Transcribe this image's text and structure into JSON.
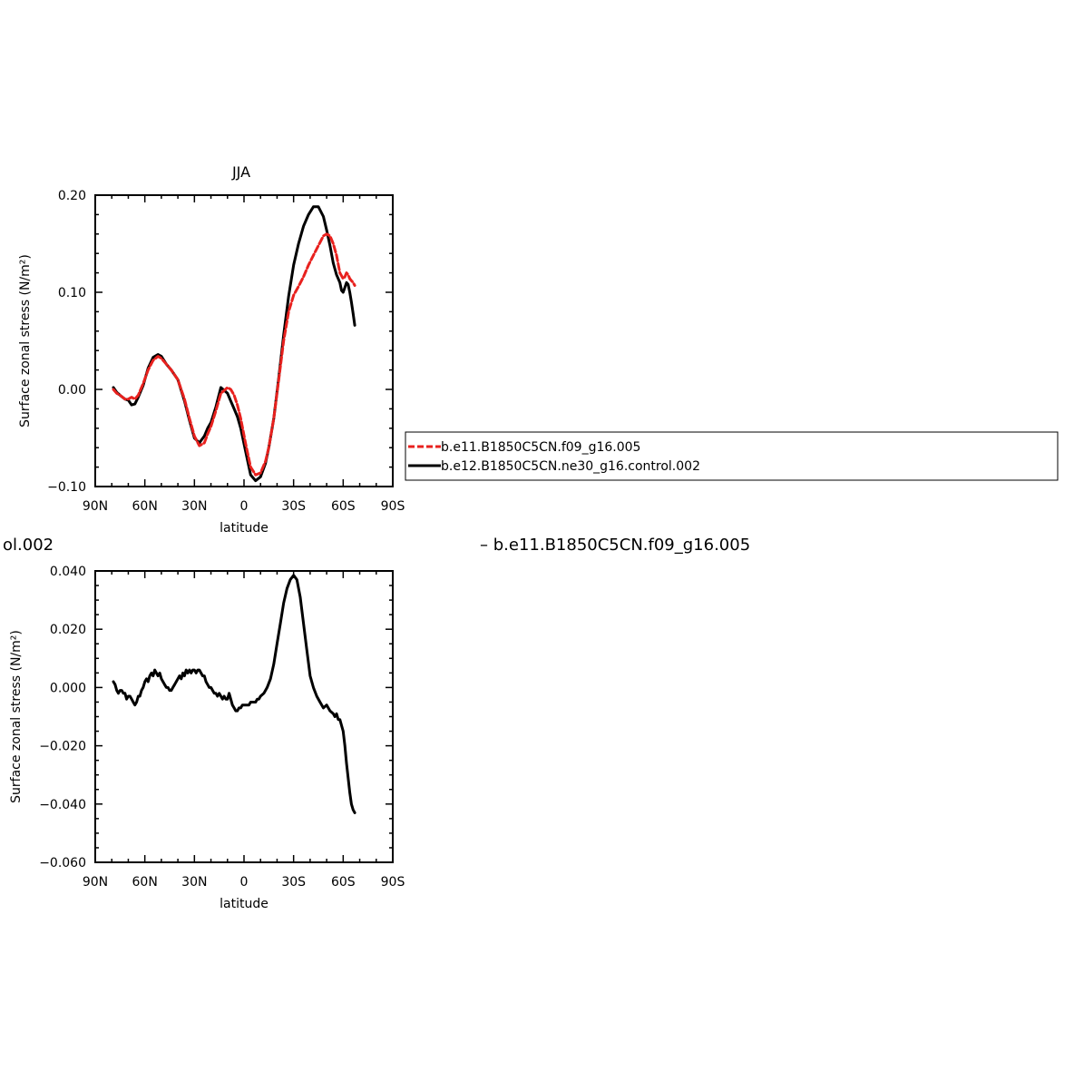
{
  "chart_data": [
    {
      "type": "line",
      "title": "JJA",
      "xlabel": "latitude",
      "ylabel": "Surface zonal stress (N/m²)",
      "xlim": [
        90,
        -90
      ],
      "ylim": [
        -0.1,
        0.2
      ],
      "x_ticks": [
        {
          "value": 90,
          "label": "90N"
        },
        {
          "value": 60,
          "label": "60N"
        },
        {
          "value": 30,
          "label": "30N"
        },
        {
          "value": 0,
          "label": "0"
        },
        {
          "value": -30,
          "label": "30S"
        },
        {
          "value": -60,
          "label": "60S"
        },
        {
          "value": -90,
          "label": "90S"
        }
      ],
      "y_ticks": [
        {
          "value": 0.2,
          "label": "0.20"
        },
        {
          "value": 0.1,
          "label": "0.10"
        },
        {
          "value": 0.0,
          "label": "0.00"
        },
        {
          "value": -0.1,
          "label": "−0.10"
        }
      ],
      "series": [
        {
          "name": "b.e11.B1850C5CN.f09_g16.005",
          "color": "#e8211e",
          "dash": true,
          "x": [
            79,
            77,
            75,
            72,
            70,
            68,
            66,
            64,
            61,
            58,
            55,
            52,
            50,
            47,
            44,
            40,
            36,
            33,
            30,
            27,
            24,
            22,
            20,
            17,
            14,
            10,
            8,
            6,
            4,
            2,
            -1,
            -4,
            -7,
            -10,
            -13,
            -15,
            -18,
            -21,
            -24,
            -27,
            -30,
            -33,
            -36,
            -39,
            -42,
            -45,
            -48,
            -50,
            -52,
            -54,
            -56,
            -58,
            -60,
            -61,
            -62,
            -63,
            -64,
            -65,
            -66,
            -67
          ],
          "y": [
            0.0,
            -0.004,
            -0.006,
            -0.01,
            -0.01,
            -0.008,
            -0.01,
            -0.006,
            0.006,
            0.02,
            0.03,
            0.034,
            0.032,
            0.026,
            0.02,
            0.01,
            -0.01,
            -0.03,
            -0.048,
            -0.058,
            -0.055,
            -0.046,
            -0.038,
            -0.022,
            -0.004,
            0.002,
            0.0,
            -0.006,
            -0.016,
            -0.03,
            -0.056,
            -0.08,
            -0.088,
            -0.086,
            -0.074,
            -0.06,
            -0.03,
            0.01,
            0.05,
            0.08,
            0.097,
            0.106,
            0.116,
            0.128,
            0.138,
            0.148,
            0.158,
            0.16,
            0.158,
            0.15,
            0.138,
            0.12,
            0.114,
            0.116,
            0.12,
            0.118,
            0.114,
            0.112,
            0.11,
            0.107
          ]
        },
        {
          "name": "b.e12.B1850C5CN.ne30_g16.control.002",
          "color": "#000000",
          "dash": false,
          "x": [
            79,
            77,
            75,
            72,
            70,
            68,
            66,
            64,
            61,
            58,
            55,
            52,
            50,
            47,
            44,
            40,
            36,
            33,
            30,
            27,
            24,
            22,
            20,
            17,
            14,
            10,
            8,
            6,
            4,
            2,
            -1,
            -4,
            -7,
            -10,
            -13,
            -15,
            -18,
            -21,
            -24,
            -27,
            -30,
            -33,
            -36,
            -39,
            -42,
            -45,
            -48,
            -50,
            -52,
            -54,
            -56,
            -58,
            -59,
            -60,
            -61,
            -62,
            -63,
            -64,
            -65,
            -66,
            -67
          ],
          "y": [
            0.002,
            -0.003,
            -0.006,
            -0.01,
            -0.011,
            -0.016,
            -0.015,
            -0.008,
            0.004,
            0.022,
            0.033,
            0.036,
            0.034,
            0.026,
            0.02,
            0.01,
            -0.012,
            -0.032,
            -0.05,
            -0.055,
            -0.048,
            -0.04,
            -0.034,
            -0.018,
            0.002,
            -0.004,
            -0.012,
            -0.02,
            -0.028,
            -0.04,
            -0.064,
            -0.088,
            -0.094,
            -0.09,
            -0.076,
            -0.06,
            -0.03,
            0.012,
            0.056,
            0.096,
            0.128,
            0.15,
            0.168,
            0.18,
            0.188,
            0.188,
            0.178,
            0.164,
            0.148,
            0.13,
            0.118,
            0.11,
            0.102,
            0.1,
            0.105,
            0.11,
            0.108,
            0.1,
            0.09,
            0.078,
            0.066
          ]
        }
      ],
      "legend_position": "right"
    },
    {
      "type": "line",
      "title": "",
      "xlabel": "latitude",
      "ylabel": "Surface zonal stress (N/m²)",
      "xlim": [
        90,
        -90
      ],
      "ylim": [
        -0.06,
        0.04
      ],
      "x_ticks": [
        {
          "value": 90,
          "label": "90N"
        },
        {
          "value": 60,
          "label": "60N"
        },
        {
          "value": 30,
          "label": "30N"
        },
        {
          "value": 0,
          "label": "0"
        },
        {
          "value": -30,
          "label": "30S"
        },
        {
          "value": -60,
          "label": "60S"
        },
        {
          "value": -90,
          "label": "90S"
        }
      ],
      "y_ticks": [
        {
          "value": 0.04,
          "label": "0.040"
        },
        {
          "value": 0.02,
          "label": "0.020"
        },
        {
          "value": 0.0,
          "label": "0.000"
        },
        {
          "value": -0.02,
          "label": "−0.020"
        },
        {
          "value": -0.04,
          "label": "−0.040"
        },
        {
          "value": -0.06,
          "label": "−0.060"
        }
      ],
      "series": [
        {
          "color": "#000000",
          "dash": false,
          "x": [
            79,
            78,
            77,
            76,
            75,
            74,
            73,
            72,
            71,
            70,
            69,
            68,
            67,
            66,
            65,
            64,
            63,
            62,
            61,
            60,
            59,
            58,
            57,
            56,
            55,
            54,
            53,
            52,
            51,
            50,
            49,
            48,
            47,
            46,
            45,
            44,
            43,
            42,
            41,
            40,
            39,
            38,
            37,
            36,
            35,
            34,
            33,
            32,
            31,
            30,
            29,
            28,
            27,
            26,
            25,
            24,
            23,
            22,
            21,
            20,
            19,
            18,
            17,
            16,
            15,
            14,
            13,
            12,
            11,
            10,
            9,
            8,
            7,
            6,
            5,
            4,
            3,
            2,
            1,
            0,
            -1,
            -2,
            -3,
            -4,
            -5,
            -6,
            -7,
            -8,
            -9,
            -10,
            -12,
            -14,
            -16,
            -18,
            -20,
            -22,
            -24,
            -26,
            -28,
            -30,
            -32,
            -34,
            -36,
            -38,
            -40,
            -42,
            -44,
            -46,
            -48,
            -50,
            -52,
            -54,
            -55,
            -56,
            -57,
            -58,
            -59,
            -60,
            -61,
            -62,
            -63,
            -64,
            -65,
            -66,
            -67
          ],
          "y": [
            0.002,
            0.001,
            -0.001,
            -0.002,
            -0.001,
            -0.001,
            -0.002,
            -0.002,
            -0.004,
            -0.003,
            -0.003,
            -0.004,
            -0.005,
            -0.006,
            -0.005,
            -0.003,
            -0.003,
            -0.001,
            0.0,
            0.002,
            0.003,
            0.002,
            0.004,
            0.005,
            0.004,
            0.006,
            0.005,
            0.004,
            0.005,
            0.003,
            0.002,
            0.001,
            0.0,
            0.0,
            -0.001,
            -0.001,
            0.0,
            0.001,
            0.002,
            0.003,
            0.004,
            0.003,
            0.005,
            0.004,
            0.006,
            0.005,
            0.006,
            0.005,
            0.006,
            0.006,
            0.005,
            0.006,
            0.006,
            0.005,
            0.004,
            0.004,
            0.002,
            0.001,
            0.0,
            0.0,
            -0.001,
            -0.002,
            -0.002,
            -0.003,
            -0.002,
            -0.003,
            -0.004,
            -0.003,
            -0.004,
            -0.004,
            -0.002,
            -0.004,
            -0.006,
            -0.007,
            -0.008,
            -0.008,
            -0.007,
            -0.007,
            -0.006,
            -0.006,
            -0.006,
            -0.006,
            -0.006,
            -0.005,
            -0.005,
            -0.005,
            -0.005,
            -0.004,
            -0.004,
            -0.003,
            -0.002,
            0.0,
            0.003,
            0.008,
            0.015,
            0.022,
            0.029,
            0.034,
            0.037,
            0.0385,
            0.037,
            0.031,
            0.022,
            0.013,
            0.004,
            0.0,
            -0.003,
            -0.005,
            -0.007,
            -0.006,
            -0.008,
            -0.009,
            -0.01,
            -0.009,
            -0.011,
            -0.011,
            -0.013,
            -0.015,
            -0.02,
            -0.026,
            -0.031,
            -0.036,
            -0.04,
            -0.042,
            -0.043
          ]
        }
      ]
    }
  ],
  "legend": {
    "entries": [
      {
        "label": "b.e11.B1850C5CN.f09_g16.005",
        "color": "#e8211e",
        "dash": true
      },
      {
        "label": "b.e12.B1850C5CN.ne30_g16.control.002",
        "color": "#000000",
        "dash": false
      }
    ]
  },
  "overflow_text": {
    "left": "ol.002",
    "right": "– b.e11.B1850C5CN.f09_g16.005"
  }
}
